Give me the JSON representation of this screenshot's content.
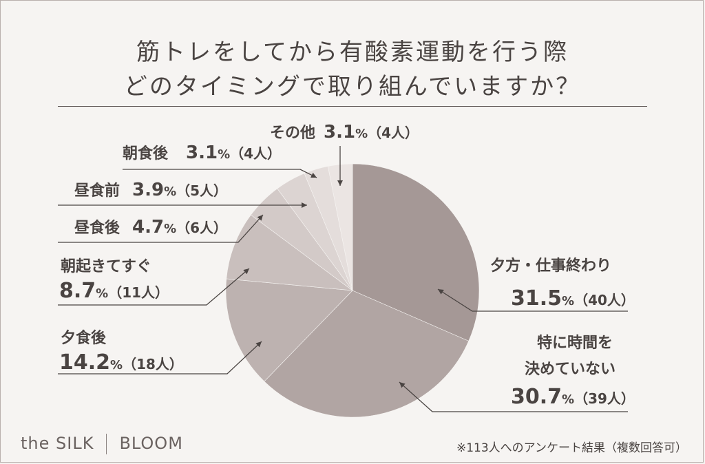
{
  "title_line1": "筋トレをしてから有酸素運動を行う際",
  "title_line2": "どのタイミングで取り組んでいますか？",
  "brand": {
    "left": "the SILK",
    "right": "BLOOM"
  },
  "footnote": "※113人へのアンケート結果（複数回答可）",
  "chart_data": {
    "type": "pie",
    "title": "筋トレをしてから有酸素運動を行う際 どのタイミングで取り組んでいますか？",
    "unit": "%",
    "slices": [
      {
        "name": "夕方・仕事終わり",
        "value": 31.5,
        "count": "（40人）",
        "pct_label": "31.5",
        "color": "#a59896"
      },
      {
        "name": "特に時間を決めていない",
        "name_lines": [
          "特に時間を",
          "決めていない"
        ],
        "value": 30.7,
        "count": "（39人）",
        "pct_label": "30.7",
        "color": "#b1a5a3"
      },
      {
        "name": "夕食後",
        "value": 14.2,
        "count": "（18人）",
        "pct_label": "14.2",
        "color": "#bdb2b0"
      },
      {
        "name": "朝起きてすぐ",
        "value": 8.7,
        "count": "（11人）",
        "pct_label": "8.7",
        "color": "#c9bfbd"
      },
      {
        "name": "昼食後",
        "value": 4.7,
        "count": "（6人）",
        "pct_label": "4.7",
        "color": "#d3cac8"
      },
      {
        "name": "昼食前",
        "value": 3.9,
        "count": "（5人）",
        "pct_label": "3.9",
        "color": "#dcd4d2"
      },
      {
        "name": "朝食後",
        "value": 3.1,
        "count": "（4人）",
        "pct_label": "3.1",
        "color": "#e4dddb"
      },
      {
        "name": "その他",
        "value": 3.1,
        "count": "（4人）",
        "pct_label": "3.1",
        "color": "#ebe5e3"
      }
    ],
    "start_angle_deg": 0,
    "direction": "clockwise"
  }
}
